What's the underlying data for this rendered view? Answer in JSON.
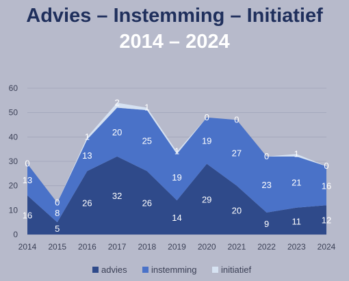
{
  "title": {
    "line1": "Advies – Instemming – Initiatief",
    "line2": "2014 – 2024"
  },
  "chart_data": {
    "type": "area",
    "stacked": true,
    "categories": [
      "2014",
      "2015",
      "2016",
      "2017",
      "2018",
      "2019",
      "2020",
      "2021",
      "2022",
      "2023",
      "2024"
    ],
    "series": [
      {
        "name": "advies",
        "color": "#2f4a8a",
        "values": [
          16,
          5,
          26,
          32,
          26,
          14,
          29,
          20,
          9,
          11,
          12
        ]
      },
      {
        "name": "instemming",
        "color": "#4a72c8",
        "values": [
          13,
          8,
          13,
          20,
          25,
          19,
          19,
          27,
          23,
          21,
          16
        ]
      },
      {
        "name": "initiatief",
        "color": "#d6e2f2",
        "values": [
          0,
          0,
          1,
          2,
          1,
          1,
          0,
          0,
          0,
          1,
          0
        ]
      }
    ],
    "ylim": [
      0,
      60
    ],
    "yticks": [
      "0",
      "10",
      "20",
      "30",
      "40",
      "50",
      "60"
    ],
    "grid": true,
    "legend": "bottom"
  }
}
